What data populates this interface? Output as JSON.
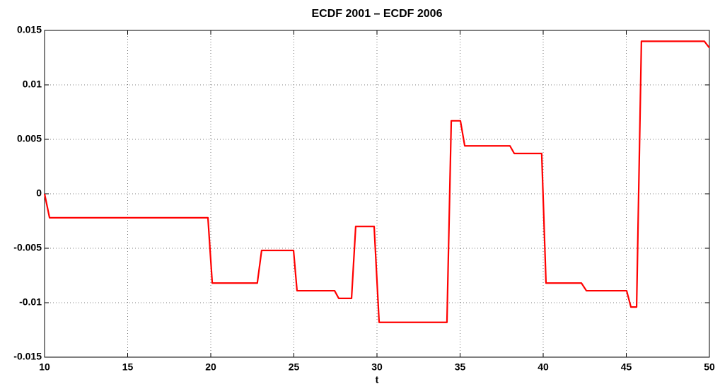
{
  "chart_data": {
    "type": "line",
    "title": "ECDF 2001 – ECDF 2006",
    "x_label": "t",
    "x": [
      10,
      10.3,
      19.83,
      20.09,
      22.8,
      23.06,
      24.98,
      25.19,
      27.45,
      27.7,
      28.47,
      28.72,
      29.83,
      30.13,
      34.21,
      34.47,
      35.02,
      35.28,
      38.0,
      38.26,
      39.91,
      40.17,
      42.3,
      42.6,
      45.02,
      45.28,
      45.62,
      45.91,
      49.7,
      50
    ],
    "series": [
      {
        "name": "ECDF 2001 – ECDF 2006",
        "color": "#ff0000",
        "values": [
          0,
          -0.0022,
          -0.0022,
          -0.0082,
          -0.0082,
          -0.0052,
          -0.0052,
          -0.0089,
          -0.0089,
          -0.0096,
          -0.0096,
          -0.003,
          -0.003,
          -0.0118,
          -0.0118,
          0.0067,
          0.0067,
          0.0044,
          0.0044,
          0.0037,
          0.0037,
          -0.0082,
          -0.0082,
          -0.0089,
          -0.0089,
          -0.0104,
          -0.0104,
          0.014,
          0.014,
          0.0134
        ]
      }
    ],
    "xlim": [
      10,
      50
    ],
    "xticks": [
      10,
      15,
      20,
      25,
      30,
      35,
      40,
      45,
      50
    ],
    "ylim": [
      -0.015,
      0.015
    ],
    "yticks": [
      -0.015,
      -0.01,
      -0.005,
      0,
      0.005,
      0.01,
      0.015
    ],
    "grid": true
  }
}
